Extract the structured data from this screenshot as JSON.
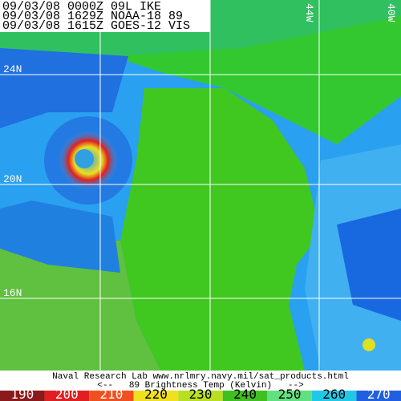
{
  "header": {
    "lines": [
      "09/03/08 0000Z 09L IKE",
      "09/03/08 1629Z NOAA-18 89",
      "09/03/08 1615Z GOES-12 VIS"
    ]
  },
  "map": {
    "lat_labels": [
      "24N",
      "20N",
      "16N"
    ],
    "lon_labels": [
      "44W",
      "40W"
    ]
  },
  "footer": {
    "credit": "Naval Research Lab  www.nrlmry.navy.mil/sat_products.html",
    "scale_title": "<--   89 Brightness Temp (Kelvin)   -->"
  },
  "colorbar": {
    "labels": [
      "190",
      "200",
      "210",
      "220",
      "230",
      "240",
      "250",
      "260",
      "270"
    ],
    "colors": [
      "#8b1a1a",
      "#e02020",
      "#f05020",
      "#f0e020",
      "#b8e020",
      "#40c020",
      "#60e080",
      "#20c8e8",
      "#2060e0"
    ]
  }
}
